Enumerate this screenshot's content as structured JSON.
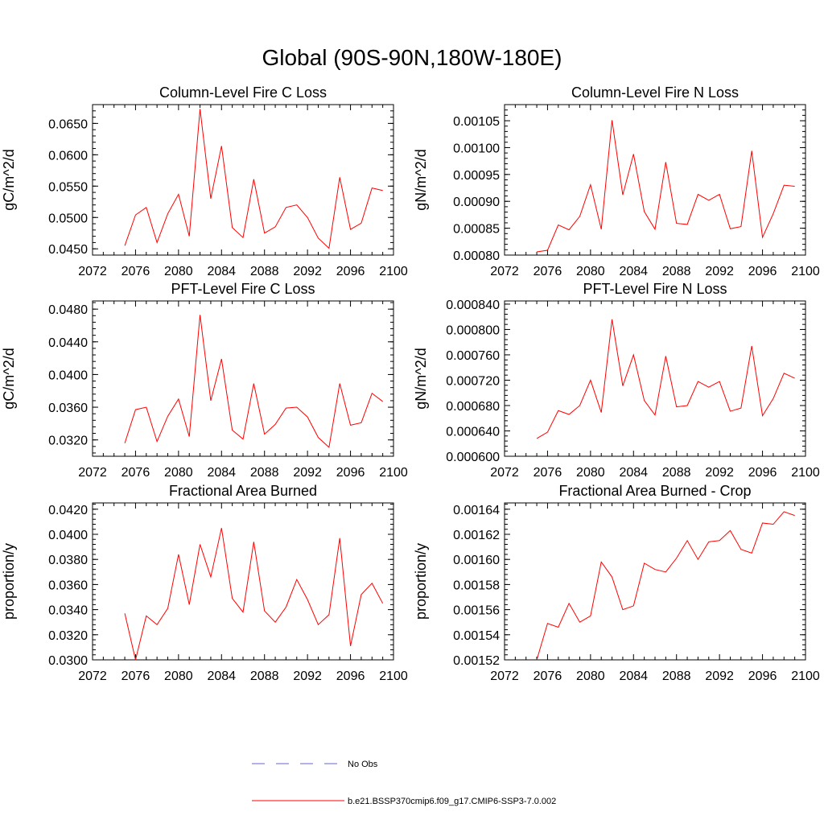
{
  "page": {
    "title": "Global (90S-90N,180W-180E)"
  },
  "legend": [
    {
      "label": "No Obs",
      "color": "#6666cc",
      "dash": "dashed"
    },
    {
      "label": "b.e21.BSSP370cmip6.f09_g17.CMIP6-SSP3-7.0.002",
      "color": "#ff0000",
      "dash": "solid"
    }
  ],
  "chart_data": [
    {
      "type": "line",
      "title": "Column-Level Fire C Loss",
      "ylabel": "gC/m^2/d",
      "xlabel": "",
      "xlim": [
        2072,
        2100
      ],
      "ylim": [
        0.044,
        0.068
      ],
      "xticks": [
        "2072",
        "2076",
        "2080",
        "2084",
        "2088",
        "2092",
        "2096",
        "2100"
      ],
      "yticks": [
        "0.0450",
        "0.0500",
        "0.0550",
        "0.0600",
        "0.0650"
      ],
      "x": [
        2075,
        2076,
        2077,
        2078,
        2079,
        2080,
        2081,
        2082,
        2083,
        2084,
        2085,
        2086,
        2087,
        2088,
        2089,
        2090,
        2091,
        2092,
        2093,
        2094,
        2095,
        2096,
        2097,
        2098,
        2099
      ],
      "series": [
        {
          "color": "#ff0000",
          "values": [
            0.0455,
            0.0504,
            0.0516,
            0.046,
            0.0506,
            0.0537,
            0.047,
            0.0673,
            0.053,
            0.0614,
            0.0484,
            0.0468,
            0.0561,
            0.0475,
            0.0485,
            0.0516,
            0.052,
            0.05,
            0.0467,
            0.0451,
            0.0564,
            0.0481,
            0.0491,
            0.0547,
            0.0543
          ]
        }
      ]
    },
    {
      "type": "line",
      "title": "Column-Level Fire N Loss",
      "ylabel": "gN/m^2/d",
      "xlabel": "",
      "xlim": [
        2072,
        2100
      ],
      "ylim": [
        0.0008,
        0.00108
      ],
      "xticks": [
        "2072",
        "2076",
        "2080",
        "2084",
        "2088",
        "2092",
        "2096",
        "2100"
      ],
      "yticks": [
        "0.00080",
        "0.00085",
        "0.00090",
        "0.00095",
        "0.00100",
        "0.00105"
      ],
      "x": [
        2075,
        2076,
        2077,
        2078,
        2079,
        2080,
        2081,
        2082,
        2083,
        2084,
        2085,
        2086,
        2087,
        2088,
        2089,
        2090,
        2091,
        2092,
        2093,
        2094,
        2095,
        2096,
        2097,
        2098,
        2099
      ],
      "series": [
        {
          "color": "#ff0000",
          "values": [
            0.000806,
            0.000809,
            0.000856,
            0.000847,
            0.000872,
            0.000931,
            0.000848,
            0.001051,
            0.000912,
            0.000988,
            0.000881,
            0.000848,
            0.000973,
            0.000859,
            0.000857,
            0.000913,
            0.000902,
            0.000913,
            0.000849,
            0.000853,
            0.000994,
            0.000833,
            0.000877,
            0.00093,
            0.000928
          ]
        }
      ]
    },
    {
      "type": "line",
      "title": "PFT-Level Fire C Loss",
      "ylabel": "gC/m^2/d",
      "xlabel": "",
      "xlim": [
        2072,
        2100
      ],
      "ylim": [
        0.03,
        0.049
      ],
      "xticks": [
        "2072",
        "2076",
        "2080",
        "2084",
        "2088",
        "2092",
        "2096",
        "2100"
      ],
      "yticks": [
        "0.0320",
        "0.0360",
        "0.0400",
        "0.0440",
        "0.0480"
      ],
      "x": [
        2075,
        2076,
        2077,
        2078,
        2079,
        2080,
        2081,
        2082,
        2083,
        2084,
        2085,
        2086,
        2087,
        2088,
        2089,
        2090,
        2091,
        2092,
        2093,
        2094,
        2095,
        2096,
        2097,
        2098,
        2099
      ],
      "series": [
        {
          "color": "#ff0000",
          "values": [
            0.0316,
            0.0357,
            0.036,
            0.0318,
            0.0349,
            0.037,
            0.0324,
            0.0473,
            0.0368,
            0.0419,
            0.0332,
            0.0321,
            0.0389,
            0.0327,
            0.0339,
            0.0359,
            0.036,
            0.0348,
            0.0323,
            0.0311,
            0.0389,
            0.0338,
            0.0341,
            0.0377,
            0.0367
          ]
        }
      ]
    },
    {
      "type": "line",
      "title": "PFT-Level Fire N Loss",
      "ylabel": "gN/m^2/d",
      "xlabel": "",
      "xlim": [
        2072,
        2100
      ],
      "ylim": [
        0.0006,
        0.000845
      ],
      "xticks": [
        "2072",
        "2076",
        "2080",
        "2084",
        "2088",
        "2092",
        "2096",
        "2100"
      ],
      "yticks": [
        "0.000600",
        "0.000640",
        "0.000680",
        "0.000720",
        "0.000760",
        "0.000800",
        "0.000840"
      ],
      "x": [
        2075,
        2076,
        2077,
        2078,
        2079,
        2080,
        2081,
        2082,
        2083,
        2084,
        2085,
        2086,
        2087,
        2088,
        2089,
        2090,
        2091,
        2092,
        2093,
        2094,
        2095,
        2096,
        2097,
        2098,
        2099
      ],
      "series": [
        {
          "color": "#ff0000",
          "values": [
            0.000628,
            0.000638,
            0.000672,
            0.000666,
            0.00068,
            0.00072,
            0.000669,
            0.000816,
            0.000711,
            0.00076,
            0.000688,
            0.000665,
            0.000758,
            0.000678,
            0.00068,
            0.000718,
            0.000709,
            0.000718,
            0.000671,
            0.000676,
            0.000774,
            0.000664,
            0.000691,
            0.000731,
            0.000723
          ]
        }
      ]
    },
    {
      "type": "line",
      "title": "Fractional Area Burned",
      "ylabel": "proportion/y",
      "xlabel": "",
      "xlim": [
        2072,
        2100
      ],
      "ylim": [
        0.03,
        0.0425
      ],
      "xticks": [
        "2072",
        "2076",
        "2080",
        "2084",
        "2088",
        "2092",
        "2096",
        "2100"
      ],
      "yticks": [
        "0.0300",
        "0.0320",
        "0.0340",
        "0.0360",
        "0.0380",
        "0.0400",
        "0.0420"
      ],
      "x": [
        2075,
        2076,
        2077,
        2078,
        2079,
        2080,
        2081,
        2082,
        2083,
        2084,
        2085,
        2086,
        2087,
        2088,
        2089,
        2090,
        2091,
        2092,
        2093,
        2094,
        2095,
        2096,
        2097,
        2098,
        2099
      ],
      "series": [
        {
          "color": "#ff0000",
          "values": [
            0.0337,
            0.03,
            0.0335,
            0.0328,
            0.0341,
            0.0384,
            0.0344,
            0.0392,
            0.0366,
            0.0405,
            0.0349,
            0.0338,
            0.0394,
            0.0339,
            0.033,
            0.0342,
            0.0364,
            0.0348,
            0.0328,
            0.0336,
            0.0397,
            0.0311,
            0.0352,
            0.0361,
            0.0345
          ]
        }
      ]
    },
    {
      "type": "line",
      "title": "Fractional Area Burned - Crop",
      "ylabel": "proportion/y",
      "xlabel": "",
      "xlim": [
        2072,
        2100
      ],
      "ylim": [
        0.00152,
        0.001645
      ],
      "xticks": [
        "2072",
        "2076",
        "2080",
        "2084",
        "2088",
        "2092",
        "2096",
        "2100"
      ],
      "yticks": [
        "0.00152",
        "0.00154",
        "0.00156",
        "0.00158",
        "0.00160",
        "0.00162",
        "0.00164"
      ],
      "x": [
        2075,
        2076,
        2077,
        2078,
        2079,
        2080,
        2081,
        2082,
        2083,
        2084,
        2085,
        2086,
        2087,
        2088,
        2089,
        2090,
        2091,
        2092,
        2093,
        2094,
        2095,
        2096,
        2097,
        2098,
        2099
      ],
      "series": [
        {
          "color": "#ff0000",
          "values": [
            0.00152,
            0.001549,
            0.001546,
            0.001565,
            0.00155,
            0.001555,
            0.001598,
            0.001586,
            0.00156,
            0.001563,
            0.001597,
            0.001592,
            0.00159,
            0.001601,
            0.001615,
            0.0016,
            0.001614,
            0.001615,
            0.001623,
            0.001608,
            0.001605,
            0.001629,
            0.001628,
            0.001638,
            0.001635
          ]
        }
      ]
    }
  ]
}
